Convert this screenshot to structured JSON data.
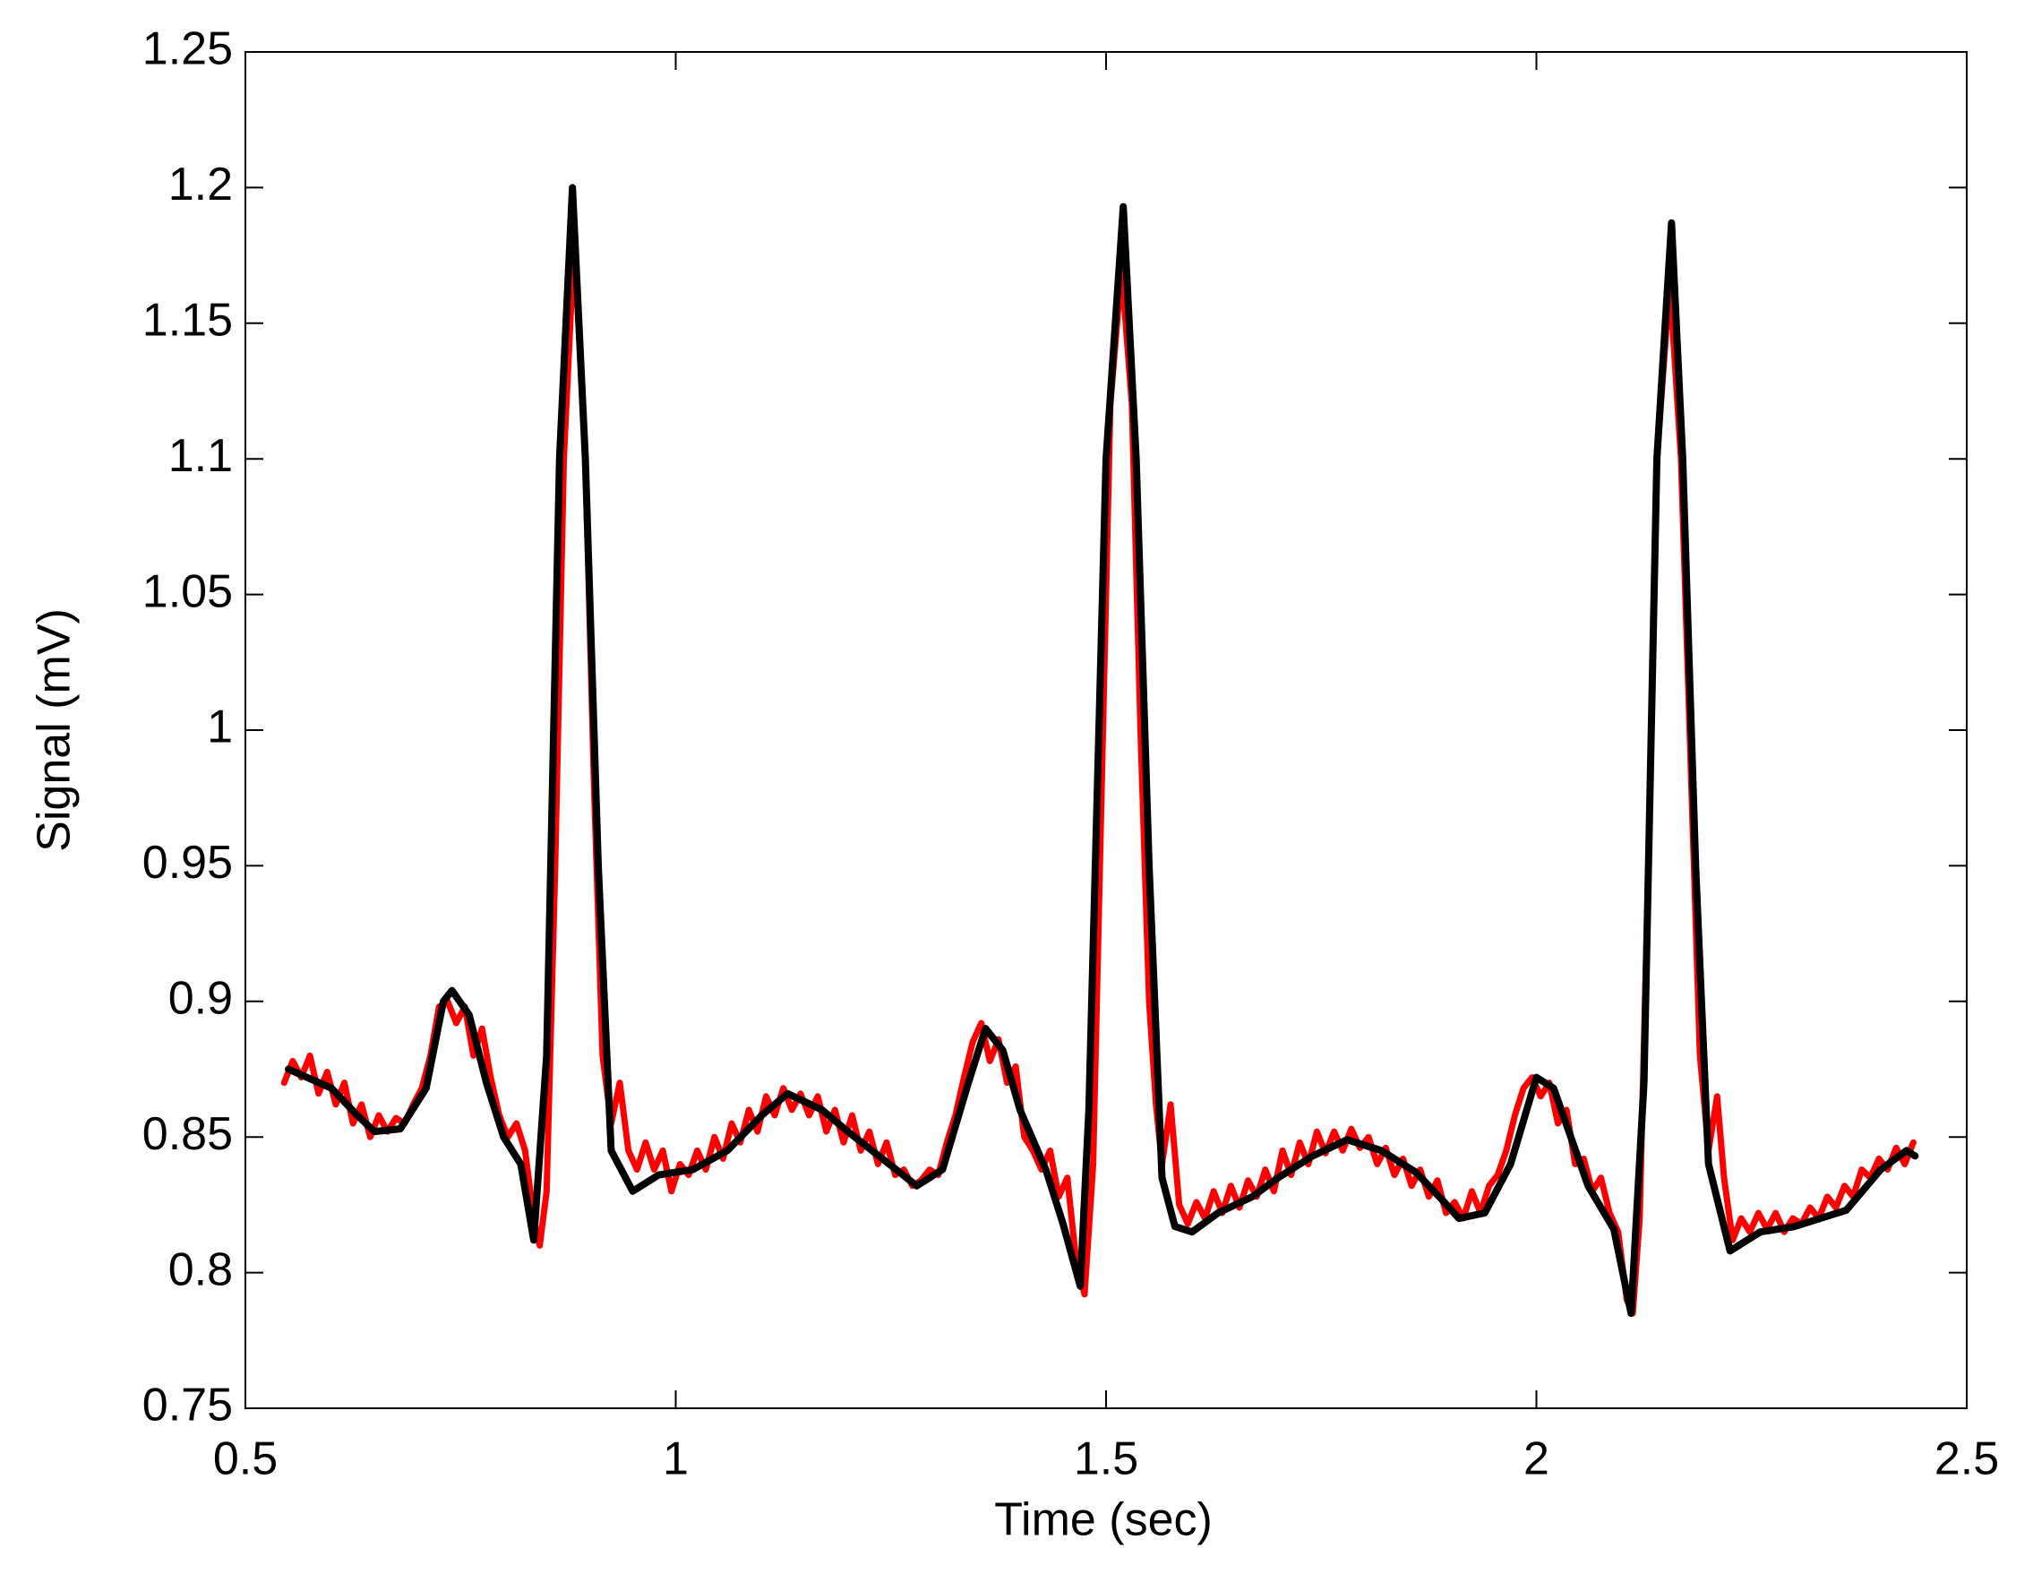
{
  "chart_data": {
    "type": "line",
    "xlabel": "Time (sec)",
    "ylabel": "Signal (mV)",
    "xlim": [
      0.5,
      2.5
    ],
    "xticks": [
      0.5,
      1,
      1.5,
      2,
      2.5
    ],
    "ylim": [
      0.75,
      1.25
    ],
    "yticks": [
      0.75,
      0.8,
      0.85,
      0.9,
      0.95,
      1,
      1.05,
      1.1,
      1.15,
      1.2,
      1.25
    ],
    "grid": false,
    "series": [
      {
        "color": "#ff0000",
        "x": [
          0.545,
          0.555,
          0.565,
          0.575,
          0.585,
          0.595,
          0.605,
          0.615,
          0.625,
          0.635,
          0.645,
          0.655,
          0.665,
          0.675,
          0.685,
          0.695,
          0.705,
          0.715,
          0.725,
          0.735,
          0.745,
          0.755,
          0.765,
          0.775,
          0.785,
          0.795,
          0.805,
          0.815,
          0.825,
          0.835,
          0.842,
          0.85,
          0.86,
          0.87,
          0.882,
          0.895,
          0.905,
          0.915,
          0.925,
          0.935,
          0.945,
          0.955,
          0.965,
          0.975,
          0.985,
          0.995,
          1.005,
          1.015,
          1.025,
          1.035,
          1.045,
          1.055,
          1.065,
          1.075,
          1.085,
          1.095,
          1.105,
          1.115,
          1.125,
          1.135,
          1.145,
          1.155,
          1.165,
          1.175,
          1.185,
          1.195,
          1.205,
          1.215,
          1.225,
          1.235,
          1.245,
          1.255,
          1.265,
          1.275,
          1.285,
          1.295,
          1.305,
          1.315,
          1.325,
          1.335,
          1.345,
          1.355,
          1.365,
          1.375,
          1.385,
          1.395,
          1.405,
          1.415,
          1.425,
          1.435,
          1.445,
          1.455,
          1.465,
          1.475,
          1.485,
          1.495,
          1.505,
          1.518,
          1.53,
          1.54,
          1.55,
          1.558,
          1.565,
          1.575,
          1.585,
          1.595,
          1.605,
          1.615,
          1.625,
          1.635,
          1.645,
          1.655,
          1.665,
          1.675,
          1.685,
          1.695,
          1.705,
          1.715,
          1.725,
          1.735,
          1.745,
          1.755,
          1.765,
          1.775,
          1.785,
          1.795,
          1.805,
          1.815,
          1.825,
          1.835,
          1.845,
          1.855,
          1.865,
          1.875,
          1.885,
          1.895,
          1.905,
          1.915,
          1.925,
          1.935,
          1.945,
          1.955,
          1.965,
          1.975,
          1.985,
          1.995,
          2.005,
          2.015,
          2.025,
          2.035,
          2.045,
          2.055,
          2.065,
          2.075,
          2.085,
          2.095,
          2.105,
          2.112,
          2.12,
          2.13,
          2.14,
          2.155,
          2.168,
          2.18,
          2.19,
          2.2,
          2.21,
          2.218,
          2.228,
          2.238,
          2.248,
          2.258,
          2.268,
          2.278,
          2.288,
          2.298,
          2.308,
          2.318,
          2.328,
          2.338,
          2.348,
          2.358,
          2.368,
          2.378,
          2.388,
          2.398,
          2.408,
          2.418,
          2.428,
          2.438
        ],
        "values": [
          0.87,
          0.878,
          0.872,
          0.88,
          0.866,
          0.874,
          0.862,
          0.87,
          0.855,
          0.862,
          0.85,
          0.858,
          0.852,
          0.857,
          0.855,
          0.862,
          0.868,
          0.88,
          0.898,
          0.9,
          0.892,
          0.898,
          0.88,
          0.89,
          0.872,
          0.858,
          0.85,
          0.855,
          0.845,
          0.82,
          0.81,
          0.83,
          0.95,
          1.1,
          1.18,
          1.1,
          0.98,
          0.88,
          0.855,
          0.87,
          0.845,
          0.838,
          0.848,
          0.838,
          0.845,
          0.83,
          0.84,
          0.836,
          0.845,
          0.838,
          0.85,
          0.842,
          0.855,
          0.848,
          0.86,
          0.852,
          0.865,
          0.858,
          0.868,
          0.86,
          0.866,
          0.858,
          0.865,
          0.852,
          0.86,
          0.848,
          0.858,
          0.845,
          0.852,
          0.84,
          0.848,
          0.836,
          0.838,
          0.832,
          0.834,
          0.838,
          0.836,
          0.848,
          0.858,
          0.872,
          0.885,
          0.892,
          0.878,
          0.886,
          0.87,
          0.876,
          0.85,
          0.845,
          0.838,
          0.845,
          0.828,
          0.835,
          0.805,
          0.792,
          0.84,
          0.98,
          1.12,
          1.17,
          1.12,
          1.0,
          0.9,
          0.862,
          0.84,
          0.862,
          0.825,
          0.818,
          0.826,
          0.82,
          0.83,
          0.822,
          0.832,
          0.824,
          0.834,
          0.828,
          0.838,
          0.83,
          0.845,
          0.836,
          0.848,
          0.84,
          0.852,
          0.844,
          0.852,
          0.845,
          0.853,
          0.846,
          0.85,
          0.84,
          0.846,
          0.836,
          0.842,
          0.832,
          0.838,
          0.828,
          0.834,
          0.822,
          0.826,
          0.82,
          0.83,
          0.822,
          0.832,
          0.836,
          0.845,
          0.858,
          0.868,
          0.872,
          0.865,
          0.87,
          0.855,
          0.86,
          0.84,
          0.842,
          0.83,
          0.835,
          0.822,
          0.815,
          0.79,
          0.785,
          0.82,
          0.95,
          1.1,
          1.165,
          1.1,
          0.98,
          0.88,
          0.845,
          0.865,
          0.835,
          0.812,
          0.82,
          0.815,
          0.822,
          0.816,
          0.822,
          0.815,
          0.82,
          0.818,
          0.824,
          0.82,
          0.828,
          0.824,
          0.832,
          0.828,
          0.838,
          0.835,
          0.842,
          0.838,
          0.846,
          0.84,
          0.848
        ]
      },
      {
        "color": "#000000",
        "x": [
          0.55,
          0.6,
          0.63,
          0.65,
          0.68,
          0.71,
          0.73,
          0.74,
          0.76,
          0.78,
          0.8,
          0.82,
          0.835,
          0.85,
          0.865,
          0.88,
          0.895,
          0.91,
          0.925,
          0.95,
          0.98,
          1.02,
          1.06,
          1.1,
          1.13,
          1.17,
          1.2,
          1.24,
          1.28,
          1.31,
          1.34,
          1.36,
          1.38,
          1.4,
          1.43,
          1.45,
          1.47,
          1.48,
          1.5,
          1.52,
          1.535,
          1.55,
          1.565,
          1.58,
          1.6,
          1.63,
          1.67,
          1.7,
          1.74,
          1.78,
          1.82,
          1.86,
          1.89,
          1.91,
          1.94,
          1.97,
          2.0,
          2.02,
          2.04,
          2.06,
          2.09,
          2.11,
          2.125,
          2.14,
          2.157,
          2.17,
          2.185,
          2.2,
          2.225,
          2.26,
          2.3,
          2.36,
          2.4,
          2.43,
          2.44
        ],
        "values": [
          0.875,
          0.868,
          0.858,
          0.852,
          0.853,
          0.868,
          0.9,
          0.904,
          0.895,
          0.87,
          0.85,
          0.84,
          0.812,
          0.88,
          1.1,
          1.2,
          1.1,
          0.95,
          0.845,
          0.83,
          0.836,
          0.838,
          0.845,
          0.858,
          0.866,
          0.86,
          0.852,
          0.842,
          0.832,
          0.838,
          0.87,
          0.89,
          0.882,
          0.86,
          0.838,
          0.818,
          0.795,
          0.86,
          1.1,
          1.193,
          1.1,
          0.95,
          0.835,
          0.817,
          0.815,
          0.822,
          0.828,
          0.835,
          0.843,
          0.849,
          0.845,
          0.837,
          0.827,
          0.82,
          0.822,
          0.84,
          0.872,
          0.868,
          0.85,
          0.832,
          0.816,
          0.785,
          0.87,
          1.1,
          1.187,
          1.1,
          0.95,
          0.84,
          0.808,
          0.815,
          0.817,
          0.823,
          0.838,
          0.845,
          0.843
        ]
      }
    ]
  }
}
